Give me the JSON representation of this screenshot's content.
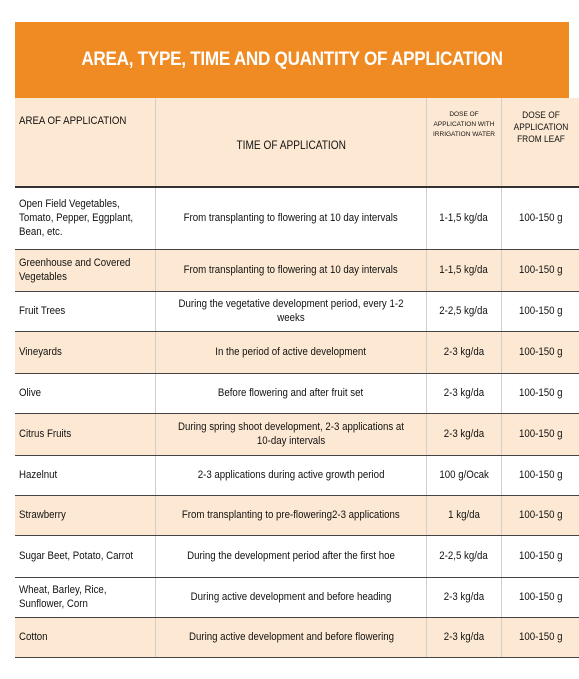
{
  "title": "AREA, TYPE, TIME AND QUANTITY OF APPLICATION",
  "headers": {
    "area": "AREA OF APPLICATION",
    "time": "TIME OF APPLICATION",
    "dose_irrigation": "DOSE OF APPLICATION WITH IRRIGATION WATER",
    "dose_leaf": "DOSE OF APPLICATION FROM LEAF"
  },
  "rows": [
    {
      "area": "Open Field Vegetables, Tomato, Pepper, Eggplant, Bean, etc.",
      "time": "From transplanting to flowering at 10 day intervals",
      "dose_irrigation": "1-1,5 kg/da",
      "dose_leaf": "100-150 g"
    },
    {
      "area": "Greenhouse and Covered Vegetables",
      "time": "From transplanting to flowering at 10 day intervals",
      "dose_irrigation": "1-1,5 kg/da",
      "dose_leaf": "100-150 g"
    },
    {
      "area": "Fruit Trees",
      "time": "During the vegetative development period, every 1-2 weeks",
      "dose_irrigation": "2-2,5 kg/da",
      "dose_leaf": "100-150 g"
    },
    {
      "area": "Vineyards",
      "time": "In the period of active development",
      "dose_irrigation": "2-3 kg/da",
      "dose_leaf": "100-150 g"
    },
    {
      "area": "Olive",
      "time": "Before flowering and after fruit set",
      "dose_irrigation": "2-3 kg/da",
      "dose_leaf": "100-150 g"
    },
    {
      "area": "Citrus Fruits",
      "time": "During spring shoot development, 2-3 applications at 10-day intervals",
      "dose_irrigation": "2-3 kg/da",
      "dose_leaf": "100-150 g"
    },
    {
      "area": "Hazelnut",
      "time": "2-3 applications during active growth period",
      "dose_irrigation": "100 g/Ocak",
      "dose_leaf": "100-150 g"
    },
    {
      "area": "Strawberry",
      "time": "From transplanting to pre-flowering2-3 applications",
      "dose_irrigation": "1 kg/da",
      "dose_leaf": "100-150 g"
    },
    {
      "area": "Sugar Beet, Potato, Carrot",
      "time": "During the development period after the first hoe",
      "dose_irrigation": "2-2,5 kg/da",
      "dose_leaf": "100-150 g"
    },
    {
      "area": "Wheat, Barley, Rice, Sunflower, Corn",
      "time": "During active development and before heading",
      "dose_irrigation": "2-3 kg/da",
      "dose_leaf": "100-150 g"
    },
    {
      "area": "Cotton",
      "time": "During active development and before flowering",
      "dose_irrigation": "2-3 kg/da",
      "dose_leaf": "100-150 g"
    }
  ]
}
